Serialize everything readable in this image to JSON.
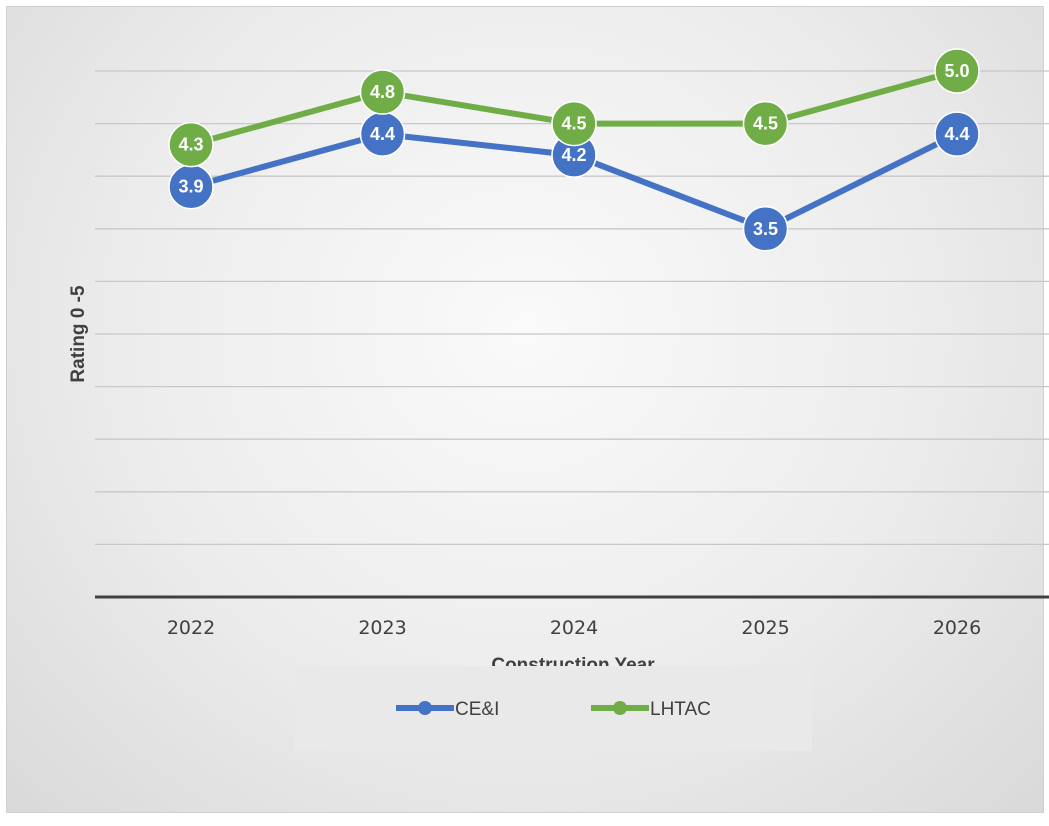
{
  "chart_data": {
    "type": "line",
    "categories": [
      "2022",
      "2023",
      "2024",
      "2025",
      "2026"
    ],
    "xlabel": "Construction Year",
    "ylabel": "Rating 0 -5",
    "ylim": [
      0,
      5
    ],
    "grid": true,
    "legend": "bottom",
    "series": [
      {
        "name": "CE&I",
        "values": [
          3.9,
          4.4,
          4.2,
          3.5,
          4.4
        ],
        "labels": [
          "3.9",
          "4.4",
          "4.2",
          "3.5",
          "4.4"
        ],
        "color": "#4472c4"
      },
      {
        "name": "LHTAC",
        "values": [
          4.3,
          4.8,
          4.5,
          4.5,
          5.0
        ],
        "labels": [
          "4.3",
          "4.8",
          "4.5",
          "4.5",
          "5.0"
        ],
        "color": "#70ad47"
      }
    ]
  }
}
